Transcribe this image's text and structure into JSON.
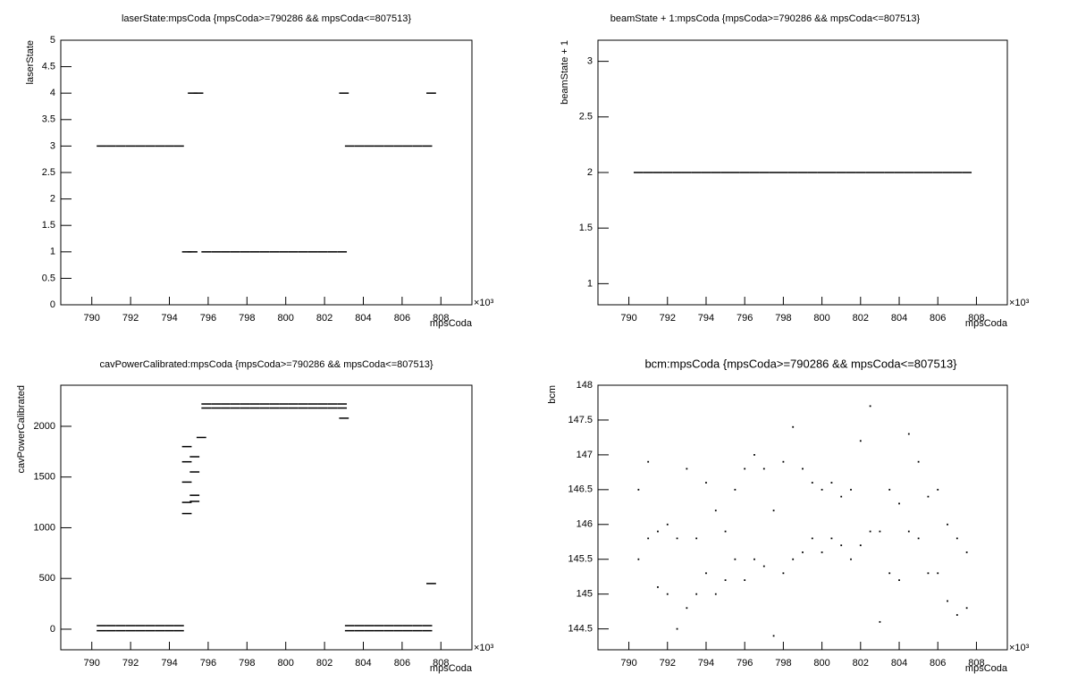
{
  "chart_data": [
    {
      "type": "scatter",
      "title": "laserState:mpsCoda {mpsCoda>=790286 && mpsCoda<=807513}",
      "x_label": "mpsCoda",
      "y_label": "laserState",
      "x_exponent_label": "×10³",
      "marker": "dash",
      "color": "#000000",
      "xlim": [
        788.4,
        809.6
      ],
      "ylim": [
        0,
        5
      ],
      "xticks": [
        790,
        792,
        794,
        796,
        798,
        800,
        802,
        804,
        806,
        808
      ],
      "yticks": [
        0,
        0.5,
        1,
        1.5,
        2,
        2.5,
        3,
        3.5,
        4,
        4.5,
        5
      ],
      "x": [
        790.5,
        791,
        791.5,
        792,
        792.5,
        793,
        793.5,
        794,
        794.5,
        795.2,
        795.5,
        794.9,
        795.2,
        795.9,
        796.4,
        796.9,
        797.4,
        797.9,
        798.4,
        798.9,
        799.4,
        799.9,
        800.4,
        800.9,
        801.4,
        801.9,
        802.4,
        802.9,
        803.0,
        807.5,
        803.3,
        803.8,
        804.3,
        804.8,
        805.3,
        805.8,
        806.3,
        806.8,
        807.3
      ],
      "values": [
        3,
        3,
        3,
        3,
        3,
        3,
        3,
        3,
        3,
        4,
        4,
        1,
        1,
        1,
        1,
        1,
        1,
        1,
        1,
        1,
        1,
        1,
        1,
        1,
        1,
        1,
        1,
        1,
        4,
        4,
        3,
        3,
        3,
        3,
        3,
        3,
        3,
        3,
        3
      ]
    },
    {
      "type": "scatter",
      "title": "beamState + 1:mpsCoda {mpsCoda>=790286 && mpsCoda<=807513}",
      "x_label": "mpsCoda",
      "y_label": "beamState + 1",
      "x_exponent_label": "×10³",
      "marker": "dash",
      "color": "#000000",
      "xlim": [
        788.4,
        809.6
      ],
      "ylim": [
        0.81,
        3.19
      ],
      "xticks": [
        790,
        792,
        794,
        796,
        798,
        800,
        802,
        804,
        806,
        808
      ],
      "yticks": [
        1,
        1.5,
        2,
        2.5,
        3
      ],
      "x": [
        790.5,
        791,
        791.5,
        792,
        792.5,
        793,
        793.5,
        794,
        794.5,
        795,
        795.5,
        796,
        796.5,
        797,
        797.5,
        798,
        798.5,
        799,
        799.5,
        800,
        800.5,
        801,
        801.5,
        802,
        802.5,
        803,
        803.5,
        804,
        804.5,
        805,
        805.5,
        806,
        806.5,
        807,
        807.5
      ],
      "values": [
        2,
        2,
        2,
        2,
        2,
        2,
        2,
        2,
        2,
        2,
        2,
        2,
        2,
        2,
        2,
        2,
        2,
        2,
        2,
        2,
        2,
        2,
        2,
        2,
        2,
        2,
        2,
        2,
        2,
        2,
        2,
        2,
        2,
        2,
        2
      ]
    },
    {
      "type": "scatter",
      "title": "cavPowerCalibrated:mpsCoda {mpsCoda>=790286 && mpsCoda<=807513}",
      "x_label": "mpsCoda",
      "y_label": "cavPowerCalibrated",
      "x_exponent_label": "×10³",
      "marker": "dash",
      "color": "#000000",
      "xlim": [
        788.4,
        809.6
      ],
      "ylim": [
        -203,
        2405
      ],
      "xticks": [
        790,
        792,
        794,
        796,
        798,
        800,
        802,
        804,
        806,
        808
      ],
      "yticks": [
        0,
        500,
        1000,
        1500,
        2000
      ],
      "x": [
        790.5,
        791,
        791.5,
        792,
        792.5,
        793,
        793.5,
        794,
        794.5,
        790.5,
        791,
        791.5,
        792,
        792.5,
        793,
        793.5,
        794,
        794.5,
        794.9,
        794.9,
        794.9,
        794.9,
        794.9,
        795.3,
        795.3,
        795.3,
        795.3,
        795.65,
        795.9,
        796.4,
        796.9,
        797.4,
        797.9,
        798.4,
        798.9,
        799.4,
        799.9,
        800.4,
        800.9,
        801.4,
        801.9,
        802.4,
        802.9,
        795.9,
        796.4,
        796.9,
        797.4,
        797.9,
        798.4,
        798.9,
        799.4,
        799.9,
        800.4,
        800.9,
        801.4,
        801.9,
        802.4,
        802.9,
        803.0,
        803.3,
        803.8,
        804.3,
        804.8,
        805.3,
        805.8,
        806.3,
        806.8,
        807.3,
        803.3,
        803.8,
        804.3,
        804.8,
        805.3,
        805.8,
        806.3,
        806.8,
        807.3,
        807.5
      ],
      "values": [
        35,
        35,
        35,
        35,
        35,
        35,
        35,
        35,
        35,
        -15,
        -15,
        -15,
        -15,
        -15,
        -15,
        -15,
        -15,
        -15,
        1140,
        1250,
        1450,
        1650,
        1800,
        1260,
        1320,
        1550,
        1700,
        1890,
        2220,
        2220,
        2220,
        2220,
        2220,
        2220,
        2220,
        2220,
        2220,
        2220,
        2220,
        2220,
        2220,
        2220,
        2220,
        2180,
        2180,
        2180,
        2180,
        2180,
        2180,
        2180,
        2180,
        2180,
        2180,
        2180,
        2180,
        2180,
        2180,
        2180,
        2080,
        35,
        35,
        35,
        35,
        35,
        35,
        35,
        35,
        35,
        -15,
        -15,
        -15,
        -15,
        -15,
        -15,
        -15,
        -15,
        -15,
        450
      ]
    },
    {
      "type": "scatter",
      "title": "bcm:mpsCoda {mpsCoda>=790286 && mpsCoda<=807513}",
      "x_label": "mpsCoda",
      "y_label": "bcm",
      "x_exponent_label": "×10³",
      "marker": "dot",
      "color": "#000000",
      "xlim": [
        788.4,
        809.6
      ],
      "ylim": [
        144.2,
        148
      ],
      "xticks": [
        790,
        792,
        794,
        796,
        798,
        800,
        802,
        804,
        806,
        808
      ],
      "yticks": [
        144.5,
        145,
        145.5,
        146,
        146.5,
        147,
        147.5,
        148
      ],
      "x": [
        790.5,
        791,
        791.5,
        792,
        792.5,
        793,
        793.5,
        794,
        794.5,
        795,
        795.5,
        796,
        796.5,
        797,
        797.5,
        798,
        798.5,
        799,
        799.5,
        800,
        800.5,
        801,
        801.5,
        802,
        802.5,
        803,
        803.5,
        804,
        804.5,
        805,
        805.5,
        806,
        806.5,
        807,
        807.5,
        790.5,
        791,
        791.5,
        792,
        792.5,
        793,
        793.5,
        794,
        794.5,
        795,
        795.5,
        796,
        796.5,
        797,
        797.5,
        798,
        798.5,
        799,
        799.5,
        800,
        800.5,
        801,
        801.5,
        802,
        802.5,
        803,
        803.5,
        804,
        804.5,
        805,
        805.5,
        806,
        806.5,
        807,
        807.5
      ],
      "values": [
        145.5,
        145.8,
        145.1,
        145.0,
        144.5,
        144.8,
        145.0,
        145.3,
        145.0,
        145.2,
        145.5,
        145.2,
        145.5,
        145.4,
        144.4,
        145.3,
        145.5,
        145.6,
        145.8,
        145.6,
        145.8,
        145.7,
        145.5,
        145.7,
        145.9,
        144.6,
        145.3,
        145.2,
        145.9,
        145.8,
        145.3,
        145.3,
        144.9,
        144.7,
        144.8,
        146.5,
        146.9,
        145.9,
        146.0,
        145.8,
        146.8,
        145.8,
        146.6,
        146.2,
        145.9,
        146.5,
        146.8,
        147.0,
        146.8,
        146.2,
        146.9,
        147.4,
        146.8,
        146.6,
        146.5,
        146.6,
        146.4,
        146.5,
        147.2,
        147.7,
        145.9,
        146.5,
        146.3,
        147.3,
        146.9,
        146.4,
        146.5,
        146.0,
        145.8,
        145.6
      ]
    }
  ]
}
